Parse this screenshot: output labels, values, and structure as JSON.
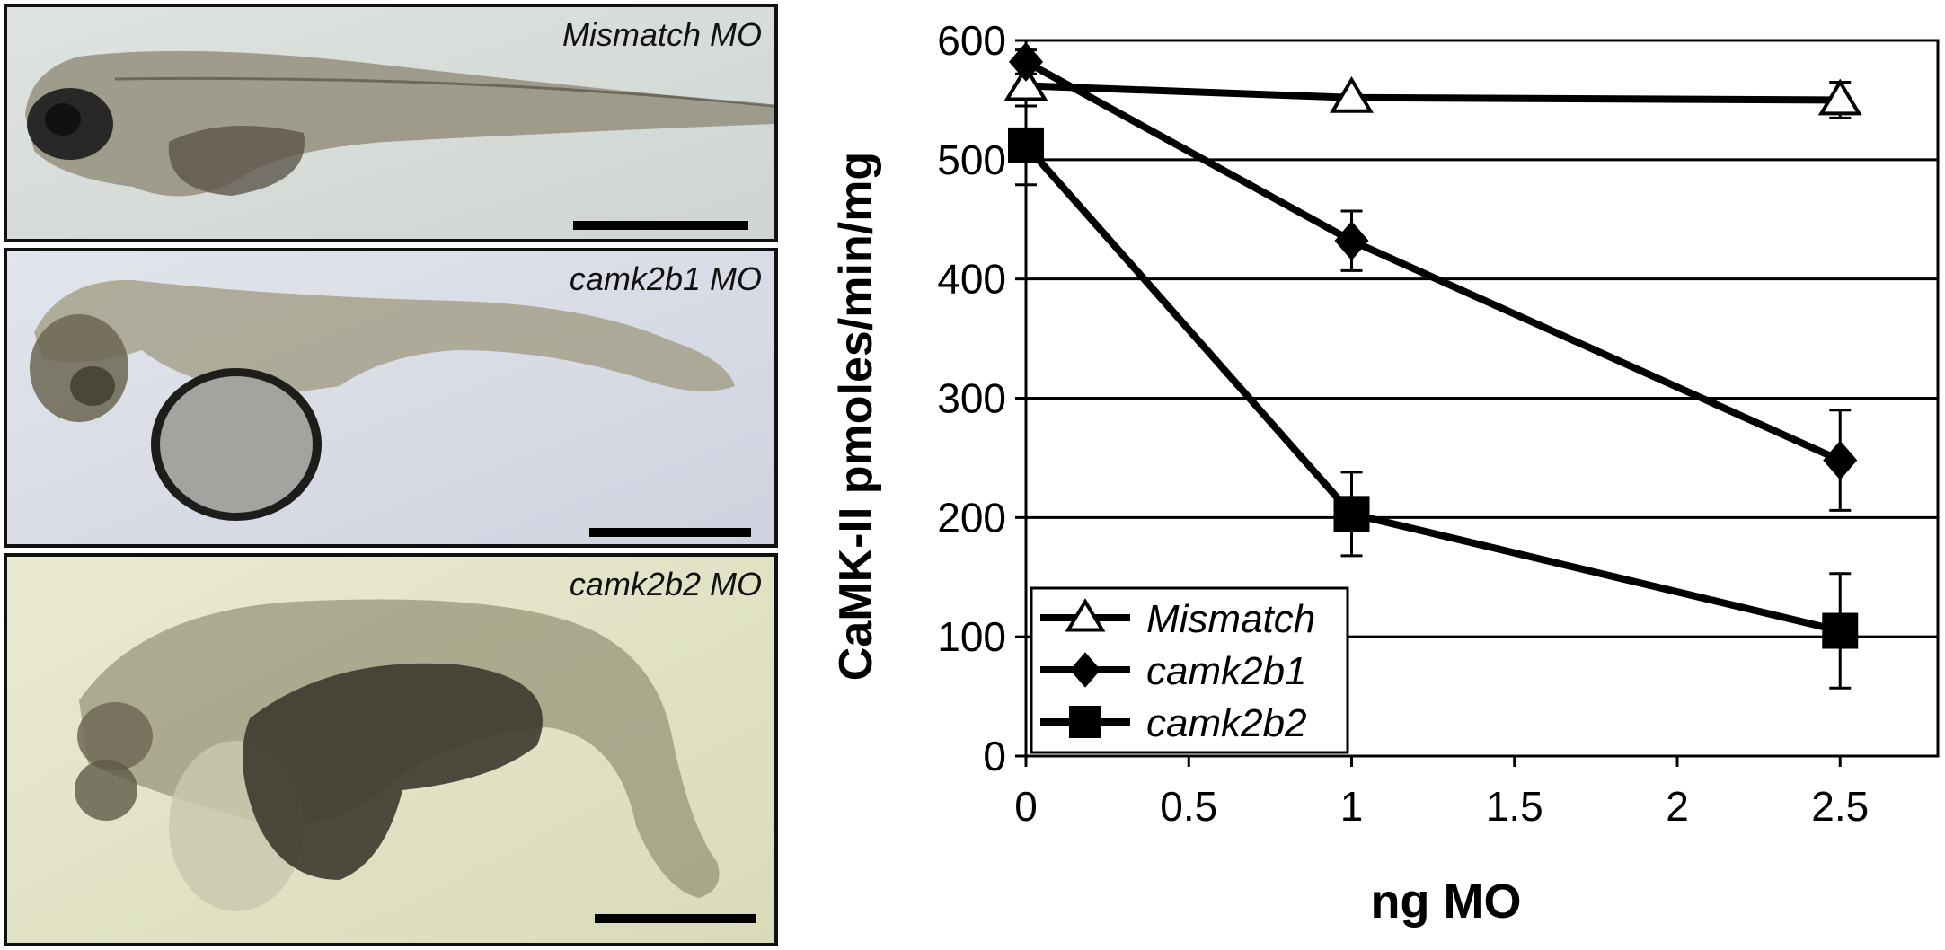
{
  "panels": [
    {
      "label": "Mismatch MO"
    },
    {
      "label": "camk2b1 MO"
    },
    {
      "label": "camk2b2 MO"
    }
  ],
  "chart_data": {
    "type": "line",
    "xlabel": "ng MO",
    "ylabel": "CaMK-II pmoles/min/mg",
    "xlim": [
      0,
      2.8
    ],
    "ylim": [
      0,
      600
    ],
    "xticks": [
      0,
      0.5,
      1,
      1.5,
      2,
      2.5
    ],
    "xtick_labels": [
      "0",
      "0.5",
      "1",
      "1.5",
      "2",
      "2.5"
    ],
    "yticks": [
      0,
      100,
      200,
      300,
      400,
      500,
      600
    ],
    "ytick_labels": [
      "0",
      "100",
      "200",
      "300",
      "400",
      "500",
      "600"
    ],
    "grid": "horizontal",
    "legend_position": "bottom-left",
    "series": [
      {
        "name": "Mismatch",
        "marker": "open-triangle",
        "color": "#000000",
        "x": [
          0,
          1,
          2.5
        ],
        "y": [
          562,
          552,
          550
        ],
        "err": [
          0,
          0,
          15
        ]
      },
      {
        "name": "camk2b1",
        "marker": "filled-diamond",
        "color": "#000000",
        "x": [
          0,
          1,
          2.5
        ],
        "y": [
          582,
          432,
          248
        ],
        "err": [
          10,
          25,
          42
        ]
      },
      {
        "name": "camk2b2",
        "marker": "filled-square",
        "color": "#000000",
        "x": [
          0,
          1,
          2.5
        ],
        "y": [
          512,
          203,
          105
        ],
        "err": [
          33,
          35,
          48
        ]
      }
    ]
  }
}
